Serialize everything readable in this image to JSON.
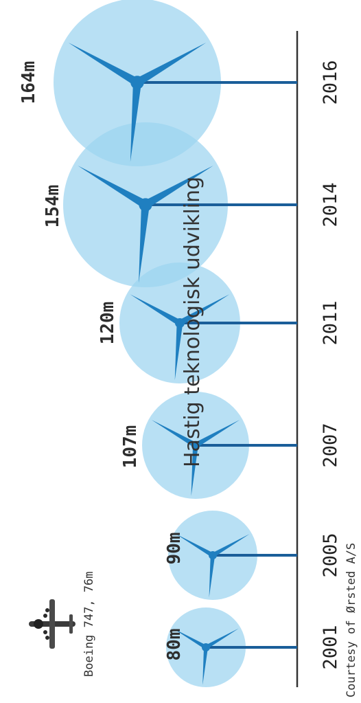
{
  "title": "Hastig teknologisk udvikling",
  "reference": {
    "label": "Boeing 747, 76m"
  },
  "credit": "Courtesy of Ørsted A/S",
  "colors": {
    "rotor": "#9dd4f0",
    "blade": "#1f7fc0",
    "tower": "#1a5e99",
    "axis": "#333333"
  },
  "icons": [
    "airplane-icon",
    "wind-turbine-icon"
  ],
  "turbines": [
    {
      "year": "2001",
      "diameter_label": "80m",
      "diameter_m": 80
    },
    {
      "year": "2005",
      "diameter_label": "90m",
      "diameter_m": 90
    },
    {
      "year": "2007",
      "diameter_label": "107m",
      "diameter_m": 107
    },
    {
      "year": "2011",
      "diameter_label": "120m",
      "diameter_m": 120
    },
    {
      "year": "2014",
      "diameter_label": "154m",
      "diameter_m": 154
    },
    {
      "year": "2016",
      "diameter_label": "164m",
      "diameter_m": 164
    }
  ]
}
